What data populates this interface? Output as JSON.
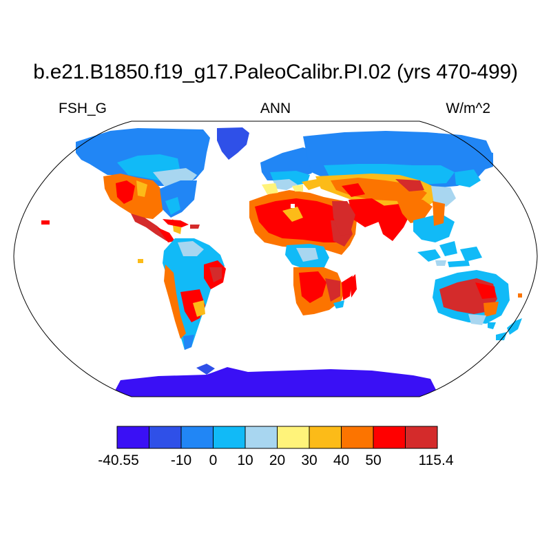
{
  "title": "b.e21.B1850.f19_g17.PaleoCalibr.PI.02 (yrs 470-499)",
  "variable": "FSH_G",
  "season": "ANN",
  "units": "W/m^2",
  "projection": "Robinson",
  "colorbar": {
    "colors": [
      "#3a10f5",
      "#2f50e8",
      "#2186f5",
      "#11baf7",
      "#a8d6f0",
      "#fff37a",
      "#fcbb18",
      "#fc7400",
      "#ff0000",
      "#d42b2b"
    ],
    "labels": [
      "-40.55",
      "-10",
      "0",
      "10",
      "20",
      "30",
      "40",
      "50",
      "115.4"
    ]
  }
}
